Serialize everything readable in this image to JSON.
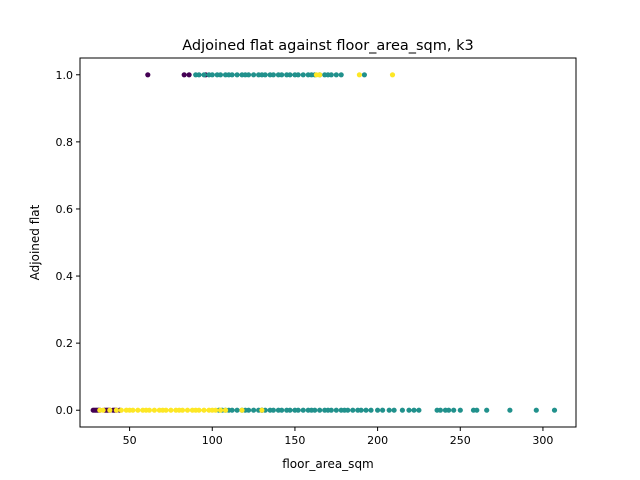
{
  "chart_data": {
    "type": "scatter",
    "title": "Adjoined flat against floor_area_sqm, k3",
    "xlabel": "floor_area_sqm",
    "ylabel": "Adjoined flat",
    "xlim": [
      20,
      320
    ],
    "ylim": [
      -0.05,
      1.05
    ],
    "xticks": [
      50,
      100,
      150,
      200,
      250,
      300
    ],
    "yticks": [
      0.0,
      0.2,
      0.4,
      0.6,
      0.8,
      1.0
    ],
    "xtick_labels": [
      "50",
      "100",
      "150",
      "200",
      "250",
      "300"
    ],
    "ytick_labels": [
      "0.0",
      "0.2",
      "0.4",
      "0.6",
      "0.8",
      "1.0"
    ],
    "grid": false,
    "legend": "none",
    "clusters": [
      {
        "color": "#440154",
        "x": [
          28,
          29,
          30,
          31,
          32,
          35,
          36,
          37,
          38,
          40,
          41,
          42,
          44,
          61,
          83,
          86,
          96,
          130
        ],
        "y": [
          0,
          0,
          0,
          0,
          0,
          0,
          0,
          0,
          0,
          0,
          0,
          0,
          0,
          1,
          1,
          1,
          1,
          0
        ]
      },
      {
        "color": "#21918c",
        "x": [
          90,
          92,
          95,
          98,
          100,
          103,
          105,
          108,
          110,
          112,
          115,
          118,
          120,
          122,
          125,
          128,
          130,
          132,
          135,
          137,
          140,
          142,
          145,
          147,
          150,
          152,
          155,
          158,
          160,
          162,
          165,
          168,
          170,
          172,
          175,
          178,
          192,
          104,
          106,
          108,
          110,
          112,
          115,
          118,
          120,
          122,
          125,
          128,
          130,
          132,
          135,
          137,
          140,
          142,
          145,
          147,
          150,
          152,
          155,
          158,
          160,
          162,
          165,
          168,
          170,
          172,
          175,
          178,
          180,
          182,
          185,
          188,
          190,
          193,
          196,
          200,
          203,
          207,
          210,
          215,
          219,
          222,
          225,
          236,
          238,
          241,
          243,
          246,
          250,
          258,
          260,
          266,
          280,
          296,
          307
        ],
        "y": [
          1,
          1,
          1,
          1,
          1,
          1,
          1,
          1,
          1,
          1,
          1,
          1,
          1,
          1,
          1,
          1,
          1,
          1,
          1,
          1,
          1,
          1,
          1,
          1,
          1,
          1,
          1,
          1,
          1,
          1,
          1,
          1,
          1,
          1,
          1,
          1,
          1,
          0,
          0,
          0,
          0,
          0,
          0,
          0,
          0,
          0,
          0,
          0,
          0,
          0,
          0,
          0,
          0,
          0,
          0,
          0,
          0,
          0,
          0,
          0,
          0,
          0,
          0,
          0,
          0,
          0,
          0,
          0,
          0,
          0,
          0,
          0,
          0,
          0,
          0,
          0,
          0,
          0,
          0,
          0,
          0,
          0,
          0,
          0,
          0,
          0,
          0,
          0,
          0,
          0,
          0,
          0,
          0,
          0,
          0
        ]
      },
      {
        "color": "#fde725",
        "x": [
          32,
          34,
          38,
          42,
          45,
          48,
          50,
          52,
          55,
          58,
          60,
          62,
          65,
          68,
          70,
          72,
          75,
          78,
          80,
          82,
          85,
          88,
          90,
          92,
          95,
          98,
          100,
          102,
          105,
          108,
          118,
          130,
          163,
          165,
          189,
          209
        ],
        "y": [
          0,
          0,
          0,
          0,
          0,
          0,
          0,
          0,
          0,
          0,
          0,
          0,
          0,
          0,
          0,
          0,
          0,
          0,
          0,
          0,
          0,
          0,
          0,
          0,
          0,
          0,
          0,
          0,
          0,
          0,
          0,
          0,
          1,
          1,
          1,
          1
        ]
      }
    ]
  }
}
